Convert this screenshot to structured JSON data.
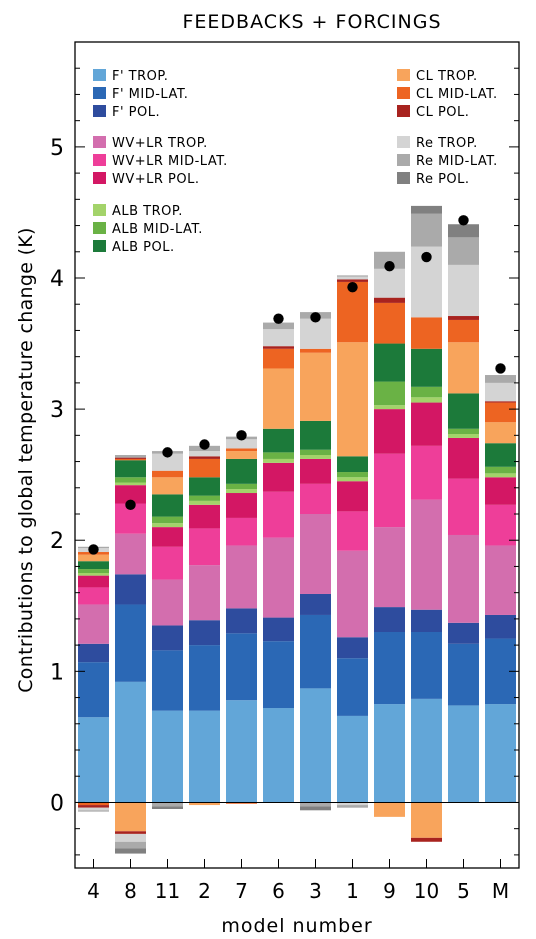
{
  "chart_data": {
    "type": "bar",
    "stacked": true,
    "title": "FEEDBACKS + FORCINGS",
    "xlabel": "model number",
    "ylabel": "Contributions to global temperature change (K)",
    "ylim": [
      -0.5,
      5.8
    ],
    "yticks": [
      0,
      1,
      2,
      3,
      4,
      5
    ],
    "grid": false,
    "categories": [
      "4",
      "8",
      "11",
      "2",
      "7",
      "6",
      "3",
      "1",
      "9",
      "10",
      "5",
      "M"
    ],
    "series": [
      {
        "name": "F' TROP.",
        "color": "#62a6d8",
        "values": [
          0.65,
          0.92,
          0.7,
          0.7,
          0.78,
          0.72,
          0.87,
          0.66,
          0.75,
          0.79,
          0.74,
          0.75
        ]
      },
      {
        "name": "F' MID-LAT.",
        "color": "#2b68b5",
        "values": [
          0.42,
          0.59,
          0.46,
          0.5,
          0.51,
          0.51,
          0.56,
          0.44,
          0.55,
          0.51,
          0.47,
          0.5
        ]
      },
      {
        "name": "F' POL.",
        "color": "#2e4c9e",
        "values": [
          0.14,
          0.23,
          0.19,
          0.19,
          0.19,
          0.18,
          0.16,
          0.16,
          0.19,
          0.17,
          0.16,
          0.18
        ]
      },
      {
        "name": "WV+LR TROP.",
        "color": "#d36eae",
        "values": [
          0.3,
          0.31,
          0.35,
          0.42,
          0.48,
          0.61,
          0.61,
          0.66,
          0.61,
          0.84,
          0.67,
          0.53
        ]
      },
      {
        "name": "WV+LR MID-LAT.",
        "color": "#ee3e99",
        "values": [
          0.13,
          0.23,
          0.25,
          0.28,
          0.21,
          0.35,
          0.23,
          0.3,
          0.56,
          0.41,
          0.43,
          0.31
        ]
      },
      {
        "name": "WV+LR POL.",
        "color": "#d31764",
        "values": [
          0.09,
          0.14,
          0.15,
          0.18,
          0.19,
          0.22,
          0.19,
          0.23,
          0.34,
          0.33,
          0.31,
          0.21
        ]
      },
      {
        "name": "ALB TROP.",
        "color": "#a3d36a",
        "values": [
          0.02,
          0.02,
          0.03,
          0.03,
          0.03,
          0.03,
          0.03,
          0.03,
          0.03,
          0.04,
          0.03,
          0.03
        ]
      },
      {
        "name": "ALB MID-LAT.",
        "color": "#6ab245",
        "values": [
          0.03,
          0.04,
          0.05,
          0.04,
          0.04,
          0.05,
          0.04,
          0.04,
          0.18,
          0.08,
          0.04,
          0.05
        ]
      },
      {
        "name": "ALB POL.",
        "color": "#1c7a3a",
        "values": [
          0.06,
          0.13,
          0.17,
          0.14,
          0.19,
          0.18,
          0.22,
          0.12,
          0.29,
          0.29,
          0.27,
          0.18
        ]
      },
      {
        "name": "CL TROP.",
        "color": "#f8a45c",
        "values": [
          0.05,
          0.0,
          0.13,
          0.0,
          0.06,
          0.46,
          0.52,
          0.87,
          0.0,
          0.0,
          0.39,
          0.16
        ]
      },
      {
        "name": "CL MID-LAT.",
        "color": "#ed6422",
        "values": [
          0.02,
          0.01,
          0.05,
          0.14,
          0.02,
          0.15,
          0.03,
          0.46,
          0.31,
          0.24,
          0.17,
          0.15
        ]
      },
      {
        "name": "CL POL.",
        "color": "#a8231f",
        "values": [
          0.0,
          0.01,
          0.0,
          0.02,
          0.0,
          0.02,
          0.0,
          0.02,
          0.04,
          0.0,
          0.03,
          0.01
        ]
      },
      {
        "name": "Re TROP.",
        "color": "#d4d4d4",
        "values": [
          0.03,
          0.0,
          0.13,
          0.04,
          0.07,
          0.13,
          0.23,
          0.02,
          0.22,
          0.54,
          0.39,
          0.14
        ]
      },
      {
        "name": "Re MID-LAT.",
        "color": "#aaaaaa",
        "values": [
          0.01,
          0.02,
          0.02,
          0.04,
          0.02,
          0.05,
          0.05,
          0.01,
          0.13,
          0.25,
          0.21,
          0.06
        ]
      },
      {
        "name": "Re POL.",
        "color": "#808080",
        "values": [
          0.0,
          0.0,
          0.0,
          0.0,
          0.0,
          0.0,
          0.0,
          0.0,
          0.0,
          0.06,
          0.1,
          0.0
        ]
      }
    ],
    "negatives": [
      [
        {
          "name": "CL MID-LAT.",
          "value": -0.02
        },
        {
          "name": "CL POL.",
          "value": -0.02
        },
        {
          "name": "Re TROP.",
          "value": -0.02
        },
        {
          "name": "Re MID-LAT.",
          "value": -0.01
        }
      ],
      [
        {
          "name": "CL TROP.",
          "value": -0.22
        },
        {
          "name": "CL POL.",
          "value": -0.02
        },
        {
          "name": "Re TROP.",
          "value": -0.06
        },
        {
          "name": "Re MID-LAT.",
          "value": -0.05
        },
        {
          "name": "Re POL.",
          "value": -0.04
        }
      ],
      [
        {
          "name": "Re MID-LAT.",
          "value": -0.03
        },
        {
          "name": "Re POL.",
          "value": -0.02
        }
      ],
      [
        {
          "name": "CL TROP.",
          "value": -0.02
        }
      ],
      [
        {
          "name": "CL MID-LAT.",
          "value": -0.01
        }
      ],
      [],
      [
        {
          "name": "Re MID-LAT.",
          "value": -0.03
        },
        {
          "name": "Re POL.",
          "value": -0.03
        }
      ],
      [
        {
          "name": "Re TROP.",
          "value": -0.02
        },
        {
          "name": "Re MID-LAT.",
          "value": -0.02
        }
      ],
      [
        {
          "name": "CL TROP.",
          "value": -0.11
        }
      ],
      [
        {
          "name": "CL TROP.",
          "value": -0.27
        },
        {
          "name": "CL POL.",
          "value": -0.03
        }
      ],
      [],
      []
    ],
    "total_markers": [
      1.93,
      2.27,
      2.67,
      2.73,
      2.8,
      3.69,
      3.7,
      3.93,
      4.09,
      4.16,
      4.44,
      3.31
    ],
    "legend": {
      "placement": "top",
      "columns": [
        [
          [
            "F' TROP.",
            "F' MID-LAT.",
            "F' POL."
          ],
          [
            "WV+LR TROP.",
            "WV+LR MID-LAT.",
            "WV+LR POL."
          ],
          [
            "ALB TROP.",
            "ALB MID-LAT.",
            "ALB POL."
          ]
        ],
        [
          [
            "CL TROP.",
            "CL MID-LAT.",
            "CL POL."
          ],
          [
            "Re TROP.",
            "Re MID-LAT.",
            "Re POL."
          ]
        ]
      ]
    }
  }
}
